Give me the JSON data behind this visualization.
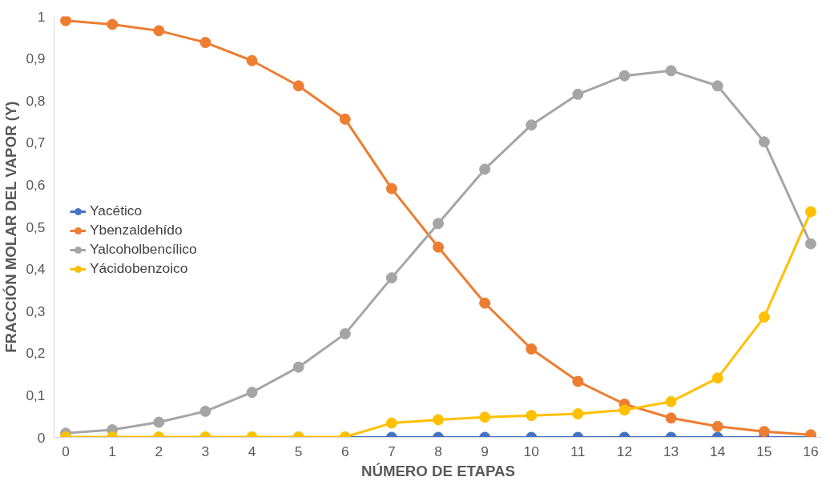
{
  "chart_data": {
    "type": "line",
    "xlabel": "NÚMERO DE ETAPAS",
    "ylabel": "FRACCIÓN MOLAR DEL VAPOR (Y)",
    "x": [
      0,
      1,
      2,
      3,
      4,
      5,
      6,
      7,
      8,
      9,
      10,
      11,
      12,
      13,
      14,
      15,
      16
    ],
    "xlim": [
      -0.25,
      16.25
    ],
    "xticks": [
      0,
      1,
      2,
      3,
      4,
      5,
      6,
      7,
      8,
      9,
      10,
      11,
      12,
      13,
      14,
      15,
      16
    ],
    "ylim": [
      0,
      1
    ],
    "yticks": [
      {
        "value": 0,
        "label": "0"
      },
      {
        "value": 0.1,
        "label": "0,1"
      },
      {
        "value": 0.2,
        "label": "0,2"
      },
      {
        "value": 0.3,
        "label": "0,3"
      },
      {
        "value": 0.4,
        "label": "0,4"
      },
      {
        "value": 0.5,
        "label": "0,5"
      },
      {
        "value": 0.6,
        "label": "0,6"
      },
      {
        "value": 0.7,
        "label": "0,7"
      },
      {
        "value": 0.8,
        "label": "0,8"
      },
      {
        "value": 0.9,
        "label": "0,9"
      },
      {
        "value": 1,
        "label": "1"
      }
    ],
    "grid": false,
    "legend": "left",
    "marker": "circle",
    "line_style": "solid",
    "series": [
      {
        "name": "Yacético",
        "color": "#4472c4",
        "values": [
          null,
          null,
          null,
          null,
          null,
          0,
          0,
          0,
          0,
          0,
          0,
          0,
          0,
          0,
          0,
          0,
          0
        ]
      },
      {
        "name": "Ybenzaldehído",
        "color": "#ed7d31",
        "values": [
          0.99,
          0.981,
          0.966,
          0.938,
          0.895,
          0.835,
          0.756,
          0.591,
          0.452,
          0.319,
          0.21,
          0.133,
          0.079,
          0.046,
          0.026,
          0.014,
          0.006
        ]
      },
      {
        "name": "Yalcoholbencílico",
        "color": "#a5a5a5",
        "values": [
          0.01,
          0.018,
          0.036,
          0.062,
          0.107,
          0.167,
          0.246,
          0.379,
          0.508,
          0.637,
          0.742,
          0.815,
          0.859,
          0.871,
          0.835,
          0.702,
          0.46
        ]
      },
      {
        "name": "Yácidobenzoico",
        "color": "#ffc000",
        "values": [
          0.001,
          0.001,
          0.001,
          0.001,
          0.001,
          0.001,
          0.001,
          0.034,
          0.042,
          0.048,
          0.052,
          0.056,
          0.065,
          0.085,
          0.141,
          0.286,
          0.536
        ]
      }
    ]
  }
}
